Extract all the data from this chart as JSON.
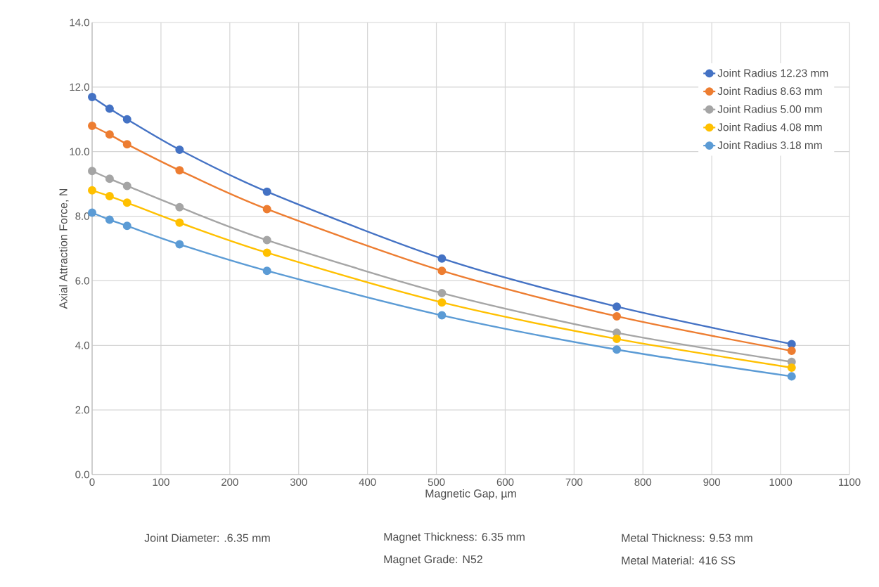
{
  "chart_data": {
    "type": "line",
    "xlabel": "Magnetic Gap, µm",
    "ylabel": "Axial Attraction Force, N",
    "x": [
      0,
      25.4,
      50.8,
      127,
      254,
      508,
      762,
      1016
    ],
    "series": [
      {
        "name": "Joint Radius 12.23 mm",
        "color": "#4472c4",
        "values": [
          11.69,
          11.33,
          11.0,
          10.06,
          8.76,
          6.69,
          5.2,
          4.04
        ]
      },
      {
        "name": "Joint Radius   8.63 mm",
        "color": "#ed7d31",
        "values": [
          10.8,
          10.53,
          10.23,
          9.42,
          8.22,
          6.31,
          4.9,
          3.83
        ]
      },
      {
        "name": "Joint Radius   5.00 mm",
        "color": "#a5a5a5",
        "values": [
          9.4,
          9.16,
          8.94,
          8.28,
          7.26,
          5.62,
          4.39,
          3.49
        ]
      },
      {
        "name": "Joint Radius   4.08 mm",
        "color": "#ffc000",
        "values": [
          8.8,
          8.62,
          8.42,
          7.8,
          6.87,
          5.33,
          4.2,
          3.31
        ]
      },
      {
        "name": "Joint Radius   3.18 mm",
        "color": "#5b9bd5",
        "values": [
          8.11,
          7.89,
          7.7,
          7.13,
          6.31,
          4.93,
          3.87,
          3.04
        ]
      }
    ],
    "xlim": [
      0,
      1100
    ],
    "xticks": [
      0,
      100,
      200,
      300,
      400,
      500,
      600,
      700,
      800,
      900,
      1000,
      1100
    ],
    "ylim": [
      0,
      14
    ],
    "yticks": [
      {
        "value": 0,
        "label": "0.0"
      },
      {
        "value": 2,
        "label": "2.0"
      },
      {
        "value": 4,
        "label": "4.0"
      },
      {
        "value": 6,
        "label": "6.0"
      },
      {
        "value": 8,
        "label": "8.0"
      },
      {
        "value": 10,
        "label": "10.0"
      },
      {
        "value": 12,
        "label": "12.0"
      },
      {
        "value": 14,
        "label": "14.0"
      }
    ],
    "grid": true,
    "legend": "top right",
    "marker": "circle",
    "line_style": "solid",
    "annotations": [
      "Joint Diameter: .6.35 mm",
      "Magnet Thickness: 6.35 mm",
      "Metal Thickness: 9.53 mm",
      "Magnet Grade: N52",
      "Metal Material: 416 SS"
    ]
  }
}
